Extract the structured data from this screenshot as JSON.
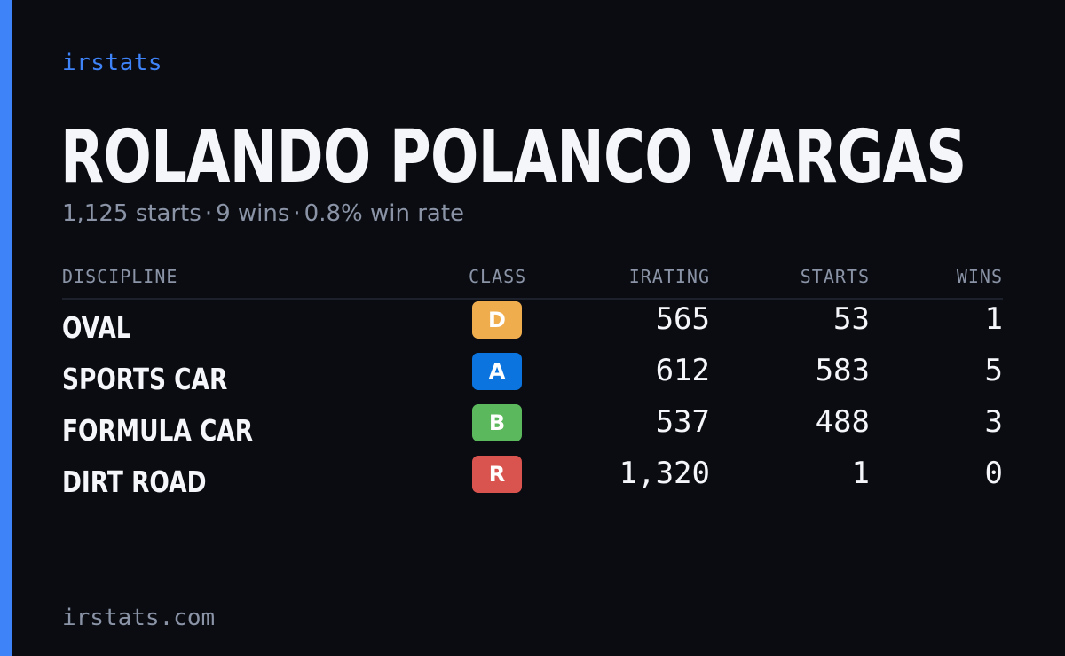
{
  "brand": "irstats",
  "driver": {
    "name": "ROLANDO POLANCO VARGAS",
    "starts": "1,125 starts",
    "wins": "9 wins",
    "win_rate": "0.8% win rate",
    "separator": "·"
  },
  "table": {
    "headers": {
      "discipline": "DISCIPLINE",
      "class": "CLASS",
      "irating": "IRATING",
      "starts": "STARTS",
      "wins": "WINS"
    },
    "rows": [
      {
        "discipline": "OVAL",
        "class": "D",
        "class_color": "#f0ad4e",
        "irating": "565",
        "starts": "53",
        "wins": "1"
      },
      {
        "discipline": "SPORTS CAR",
        "class": "A",
        "class_color": "#0b74de",
        "irating": "612",
        "starts": "583",
        "wins": "5"
      },
      {
        "discipline": "FORMULA CAR",
        "class": "B",
        "class_color": "#5cb85c",
        "irating": "537",
        "starts": "488",
        "wins": "3"
      },
      {
        "discipline": "DIRT ROAD",
        "class": "R",
        "class_color": "#d9534f",
        "irating": "1,320",
        "starts": "1",
        "wins": "0"
      }
    ]
  },
  "footer": "irstats.com",
  "colors": {
    "background": "#0a0c12",
    "accent": "#3f83f8",
    "text": "#f4f6fa",
    "muted": "#8a94a6"
  }
}
